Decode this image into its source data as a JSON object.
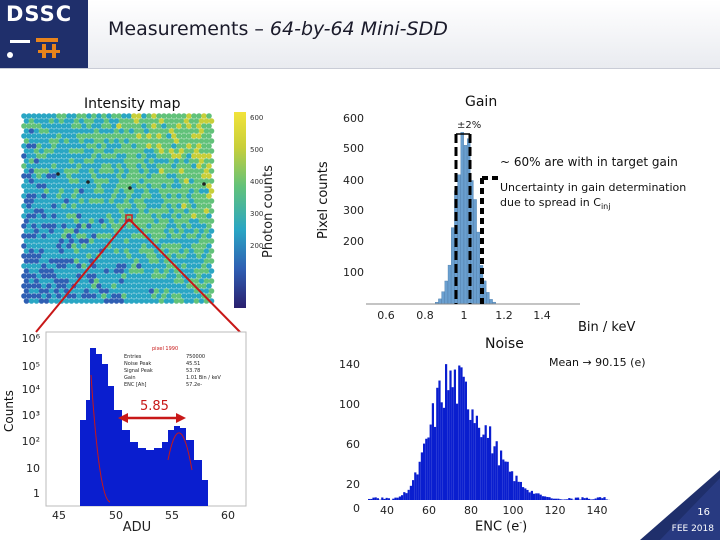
{
  "slide": {
    "title_prefix": "Measurements – ",
    "title_italic": "64-by-64 Mini-SDD",
    "logo": "DSSC",
    "page_number": "16",
    "footer_tag": "FEE 2018"
  },
  "intensity_map": {
    "title": "Intensity map",
    "colorbar_label": "Photon counts",
    "colorbar_ticks": [
      "600",
      "500",
      "400",
      "300",
      "200"
    ],
    "colormap": [
      "#2a1f6e",
      "#2f5fb3",
      "#2aa6c4",
      "#62c27a",
      "#c8cf3a",
      "#f2e33a"
    ]
  },
  "gain": {
    "title": "Gain",
    "ylabel": "Pixel counts",
    "xlabel": "Bin / keV",
    "y_ticks": [
      "600",
      "500",
      "400",
      "300",
      "200",
      "100"
    ],
    "x_ticks": [
      "0.6",
      "0.8",
      "1",
      "1.2",
      "1.4"
    ],
    "band_label": "±2%",
    "note_1": "~ 60% are with in target gain",
    "note_2": "Uncertainty in gain determination",
    "note_3": "due to spread in C",
    "note_3_sub": "inj",
    "bar_color": "#6a9fcf"
  },
  "spectrum": {
    "ylabel": "Counts",
    "xlabel": "ADU",
    "y_ticks": [
      "10⁶",
      "10⁵",
      "10⁴",
      "10³",
      "10²",
      "10",
      "1"
    ],
    "x_ticks": [
      "45",
      "50",
      "55",
      "60"
    ],
    "peak_sep_label": "5.85",
    "pixel_label": "pixel 1990",
    "stats_keys": [
      "Entries",
      "Noise Peak",
      "Signal Peak",
      "Gain",
      "ENC [Ah]"
    ],
    "stats_values": [
      "750000",
      "45.51",
      "53.78",
      "1.01 Bin / keV",
      "57.2e-"
    ],
    "fill_color": "#0a1ecf"
  },
  "noise": {
    "title": "Noise",
    "mean_label": "Mean → 90.15 (e)",
    "xlabel_main": "ENC (e",
    "xlabel_sup": "-",
    "xlabel_end": ")",
    "y_ticks": [
      "140",
      "100",
      "60",
      "20",
      "0"
    ],
    "x_ticks": [
      "40",
      "60",
      "80",
      "100",
      "120",
      "140"
    ],
    "fill_color": "#0a1ecf"
  }
}
